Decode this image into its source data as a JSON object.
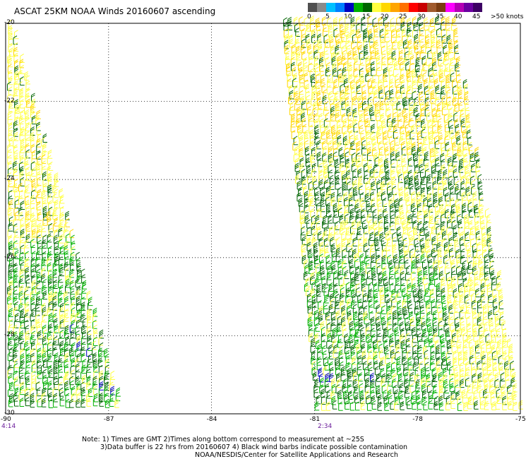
{
  "title": "ASCAT 25KM NOAA Winds 20160607 ascending",
  "legend": {
    "ticks": [
      "0",
      "5",
      "10",
      "15",
      "20",
      "25",
      "30",
      "35",
      "40",
      "45",
      ">50 knots"
    ],
    "colors": [
      "#505050",
      "#8a8a8a",
      "#00c0ff",
      "#0080ff",
      "#0000c0",
      "#00b000",
      "#006400",
      "#ffff40",
      "#ffd700",
      "#ffa500",
      "#ff7000",
      "#ff0000",
      "#c80000",
      "#a05a2c",
      "#7a3c10",
      "#ff00ff",
      "#b400b4",
      "#6a00a0",
      "#3c0064"
    ]
  },
  "map": {
    "lat_labels": [
      "-20",
      "-22",
      "-24",
      "-26",
      "-28",
      "-30"
    ],
    "lon_labels": [
      "-90",
      "-87",
      "-84",
      "-81",
      "-78",
      "-75"
    ],
    "lat_range": [
      -30,
      -20
    ],
    "lon_range": [
      -90,
      -75
    ],
    "grid": "dotted",
    "pass_times": [
      "4:14",
      "2:34"
    ]
  },
  "colors": {
    "barb_light": "#ffd700",
    "barb_yellow": "#ffff40",
    "barb_dark_green": "#006400",
    "barb_green": "#00b000",
    "barb_blue": "#0000c0",
    "time_label": "#6a1b9a"
  },
  "notes": {
    "line1": "Note: 1) Times are GMT 2)Times along bottom correspond to measurement at ~25S",
    "line2": "3)Data buffer is 22 hrs from 20160607 4) Black wind barbs indicate possible contamination",
    "line3": "NOAA/NESDIS/Center for Satellite Applications and Research"
  }
}
